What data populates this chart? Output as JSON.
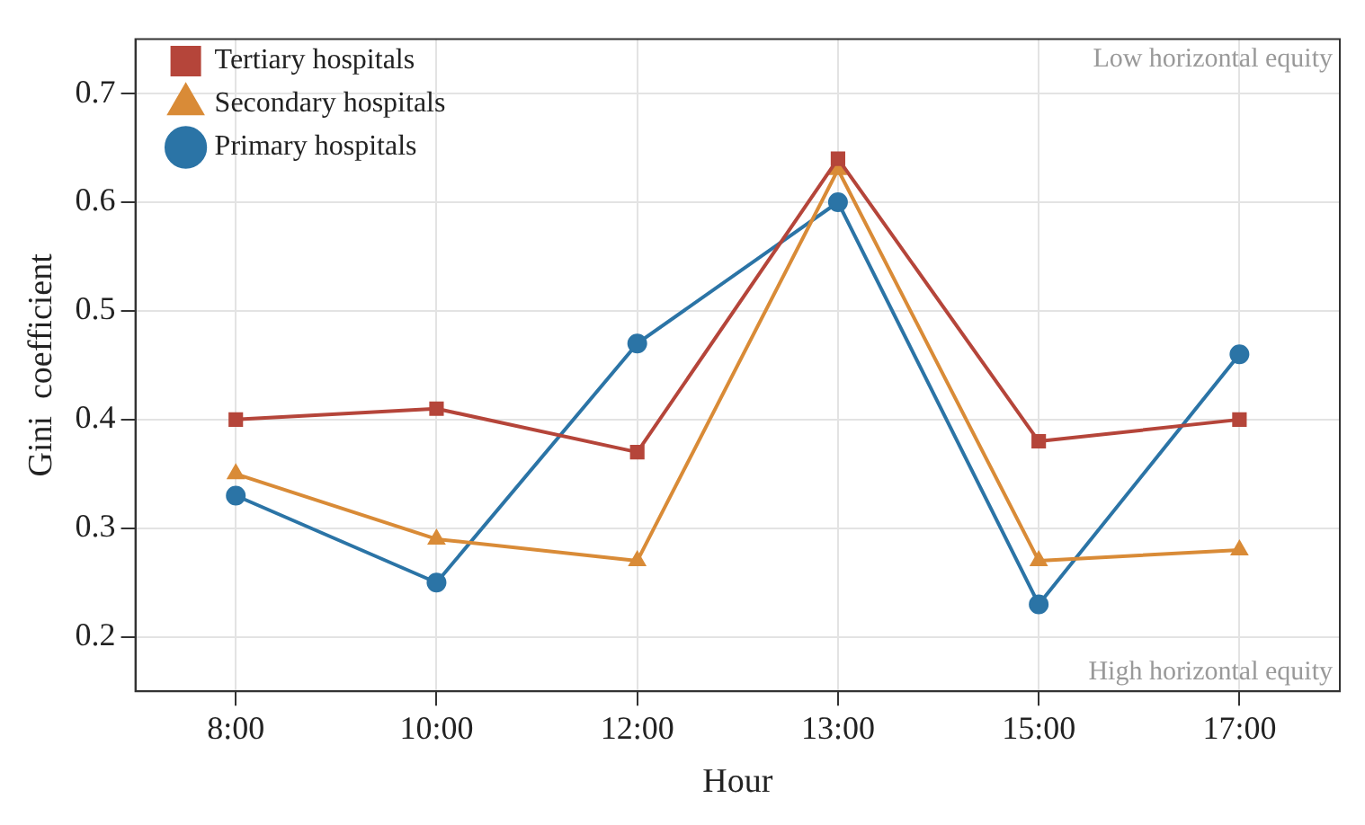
{
  "chart_data": {
    "type": "line",
    "xlabel": "Hour",
    "ylabel": "Gini  coefficient",
    "categories": [
      "8:00",
      "10:00",
      "12:00",
      "13:00",
      "15:00",
      "17:00"
    ],
    "series": [
      {
        "name": "Tertiary hospitals",
        "color": "#b5453a",
        "marker": "square",
        "values": [
          0.4,
          0.41,
          0.37,
          0.64,
          0.38,
          0.4
        ]
      },
      {
        "name": "Secondary hospitals",
        "color": "#d98b37",
        "marker": "triangle",
        "values": [
          0.35,
          0.29,
          0.27,
          0.63,
          0.27,
          0.28
        ]
      },
      {
        "name": "Primary hospitals",
        "color": "#2b74a6",
        "marker": "circle",
        "values": [
          0.33,
          0.25,
          0.47,
          0.6,
          0.23,
          0.46
        ]
      }
    ],
    "ylim": [
      0.15,
      0.75
    ],
    "yticks": [
      0.2,
      0.3,
      0.4,
      0.5,
      0.6,
      0.7
    ],
    "grid": true,
    "legend": "top left",
    "line_style": "solid",
    "annotations": [
      "Low horizontal equity",
      "High horizontal equity"
    ]
  }
}
